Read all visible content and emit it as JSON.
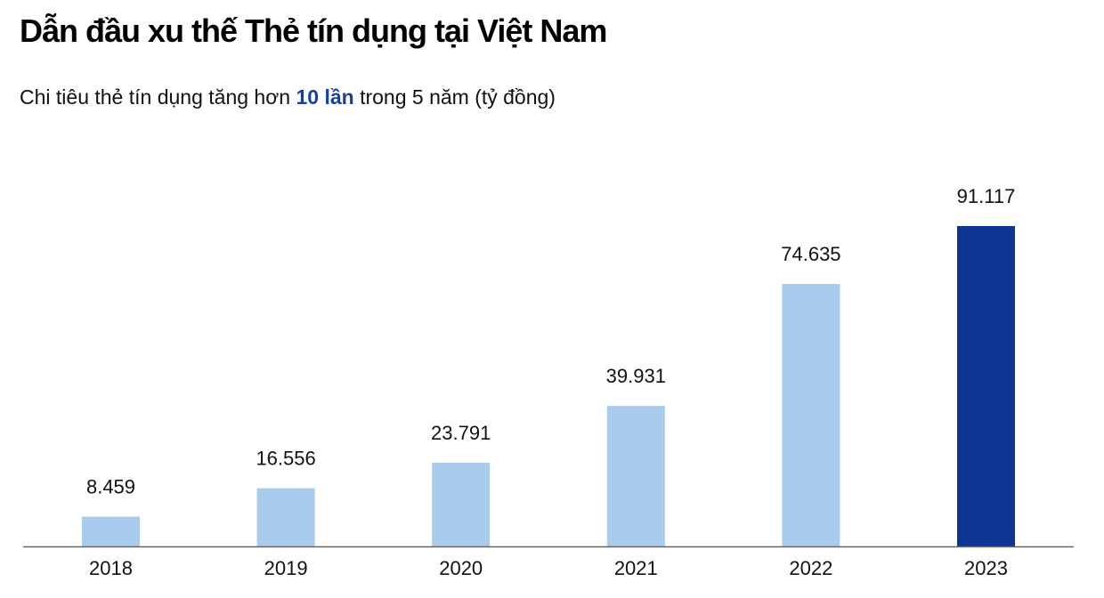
{
  "header": {
    "title": "Dẫn đầu xu thế Thẻ tín dụng tại Việt Nam",
    "subtitle_before": "Chi tiêu thẻ tín dụng tăng hơn ",
    "subtitle_highlight": "10 lần",
    "subtitle_after": " trong 5 năm (tỷ đồng)"
  },
  "colors": {
    "bar_default": "#a9cbec",
    "bar_highlight": "#0d3595",
    "highlight_text": "#1a3f9c",
    "axis": "#666666"
  },
  "chart_data": {
    "type": "bar",
    "title": "Dẫn đầu xu thế Thẻ tín dụng tại Việt Nam",
    "subtitle": "Chi tiêu thẻ tín dụng tăng hơn 10 lần trong 5 năm (tỷ đồng)",
    "categories": [
      "2018",
      "2019",
      "2020",
      "2021",
      "2022",
      "2023"
    ],
    "values": [
      8459,
      16556,
      23791,
      39931,
      74635,
      91117
    ],
    "value_labels": [
      "8.459",
      "16.556",
      "23.791",
      "39.931",
      "74.635",
      "91.117"
    ],
    "highlighted_category": "2023",
    "ylim": [
      0,
      91117
    ],
    "xlabel": "",
    "ylabel": "",
    "grid": false,
    "legend": "none"
  }
}
